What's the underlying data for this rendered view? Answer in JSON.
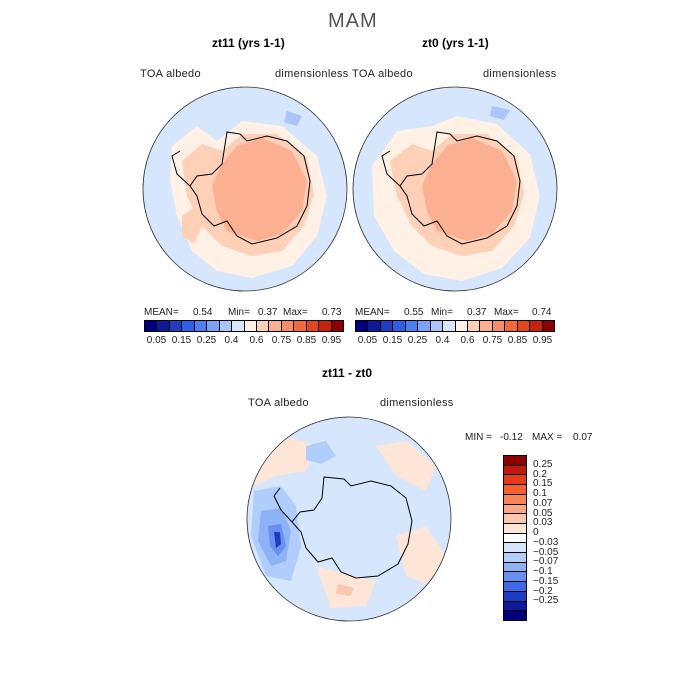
{
  "figure": {
    "title": "MAM",
    "panels": [
      {
        "title": "zt11 (yrs 1-1)",
        "left_label": "TOA albedo",
        "right_label": "dimensionless",
        "mean_label": "MEAN=",
        "mean": "0.54",
        "min_label": "Min=",
        "min": "0.37",
        "max_label": "Max=",
        "max": "0.73"
      },
      {
        "title": "zt0 (yrs 1-1)",
        "left_label": "TOA albedo",
        "right_label": "dimensionless",
        "mean_label": "MEAN=",
        "mean": "0.55",
        "min_label": "Min=",
        "min": "0.37",
        "max_label": "Max=",
        "max": "0.74"
      },
      {
        "title": "zt11 - zt0",
        "left_label": "TOA albedo",
        "right_label": "dimensionless",
        "min_label": "MIN =",
        "min": "-0.12",
        "max_label": "MAX =",
        "max": "0.07"
      }
    ],
    "colorbar_top": {
      "ticks": [
        "0.05",
        "0.15",
        "0.25",
        "0.4",
        "0.6",
        "0.75",
        "0.85",
        "0.95"
      ],
      "colors": [
        "#00007f",
        "#0d1a9a",
        "#1f3dc2",
        "#2f5ee8",
        "#4d7ef2",
        "#7aa2f7",
        "#a9c5f9",
        "#d6e6fd",
        "#fff1e6",
        "#fdd0b7",
        "#fbb191",
        "#f88c69",
        "#f3683f",
        "#e64421",
        "#c7220d",
        "#8b0000"
      ]
    },
    "colorbar_diff": {
      "labels": [
        "0.25",
        "0.2",
        "0.15",
        "0.1",
        "0.07",
        "0.05",
        "0.03",
        "0",
        "−0.03",
        "−0.05",
        "−0.07",
        "−0.1",
        "−0.15",
        "−0.2",
        "−0.25"
      ],
      "colors": [
        "#8b0000",
        "#c01a0d",
        "#e43b18",
        "#f6602b",
        "#f98456",
        "#fba784",
        "#fdc7ad",
        "#fde6d7",
        "#ffffff",
        "#d6e6fd",
        "#b0cdfb",
        "#8eb2f6",
        "#6790f0",
        "#3d69e6",
        "#1f3dc2",
        "#0d1a9a",
        "#00007f"
      ]
    }
  }
}
